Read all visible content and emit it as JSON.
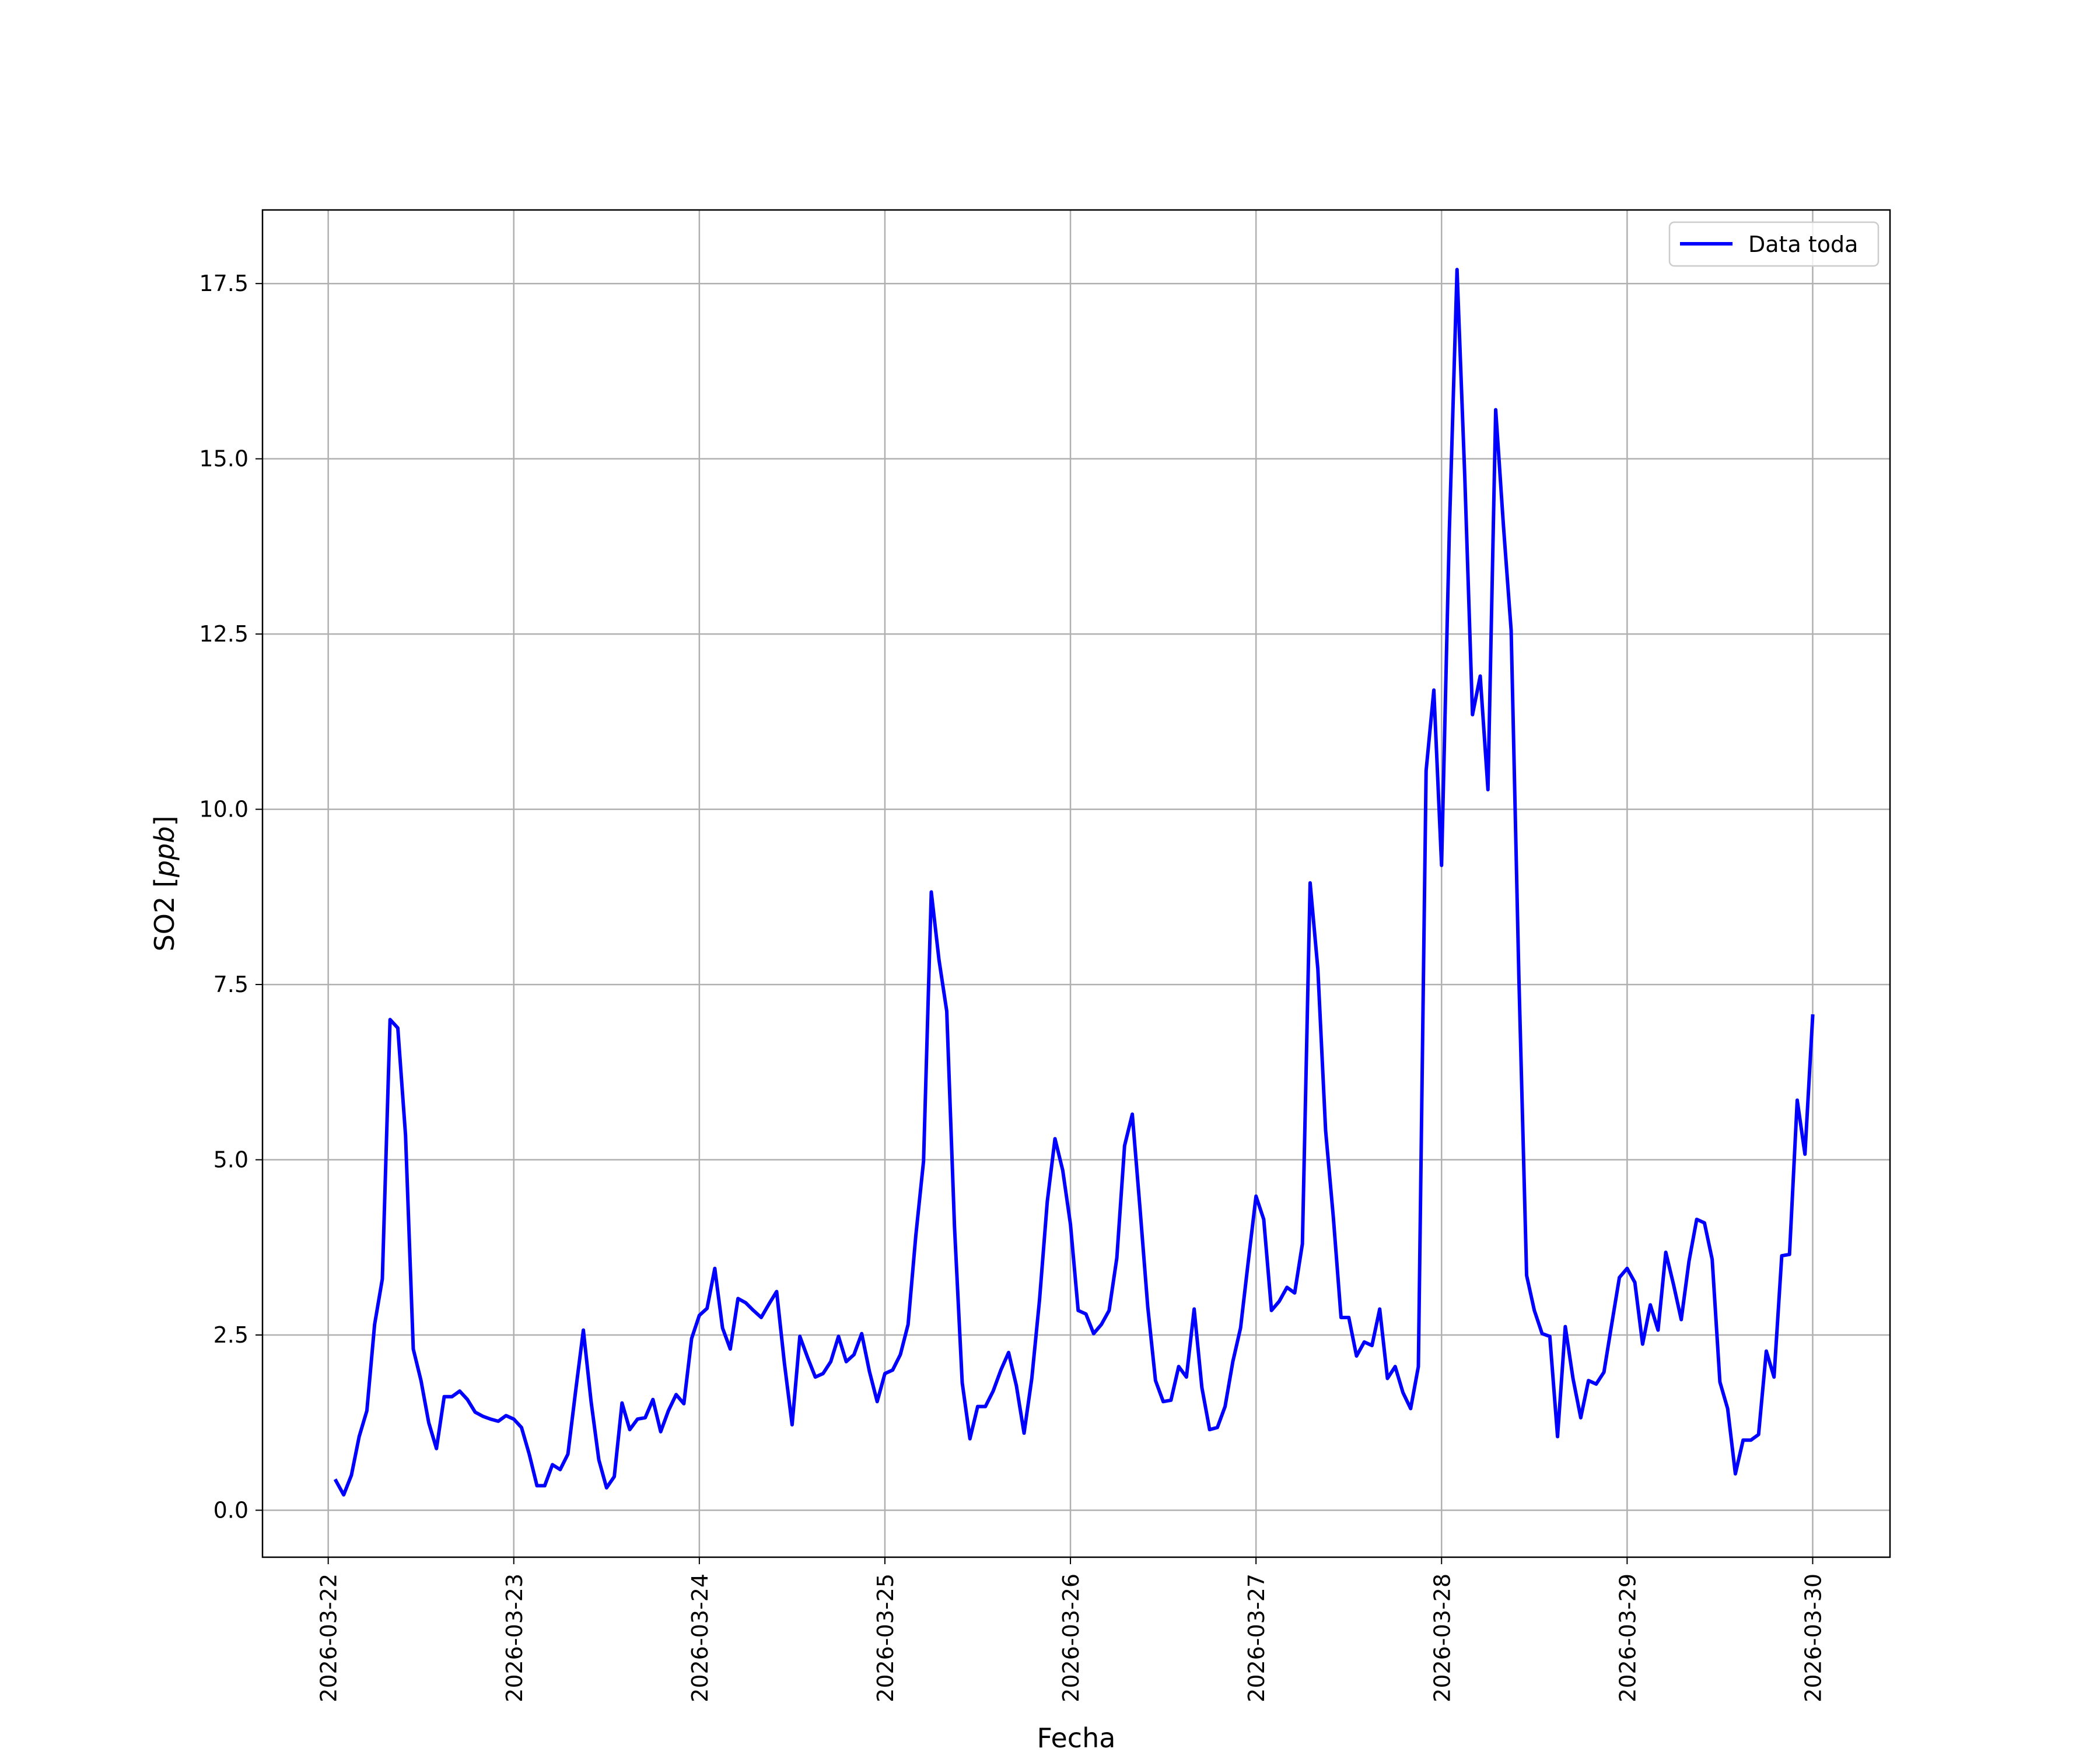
{
  "chart_data": {
    "type": "line",
    "title": "",
    "xlabel": "Fecha",
    "ylabel": "SO2 [ppb]",
    "ylabel_parts": {
      "prefix": "SO2 [",
      "unit": "ppb",
      "suffix": "]"
    },
    "xlim": [
      "2026-03-21 15:30",
      "2026-03-30 10:00"
    ],
    "ylim": [
      -0.67,
      18.55
    ],
    "x_ticks": [
      "2026-03-22",
      "2026-03-23",
      "2026-03-24",
      "2026-03-25",
      "2026-03-26",
      "2026-03-27",
      "2026-03-28",
      "2026-03-29",
      "2026-03-30"
    ],
    "y_ticks": [
      0.0,
      2.5,
      5.0,
      7.5,
      10.0,
      12.5,
      15.0,
      17.5
    ],
    "y_tick_labels": [
      "0.0",
      "2.5",
      "5.0",
      "7.5",
      "10.0",
      "12.5",
      "15.0",
      "17.5"
    ],
    "grid": true,
    "legend": {
      "position": "upper right",
      "entries": [
        "Data toda"
      ]
    },
    "series": [
      {
        "name": "Data toda",
        "color": "#0000ff",
        "start": "2026-03-22 01:00",
        "interval_hours": 1,
        "values": [
          0.42,
          0.22,
          0.5,
          1.05,
          1.42,
          2.65,
          3.3,
          7.0,
          6.88,
          5.35,
          2.3,
          1.85,
          1.25,
          0.88,
          1.62,
          1.62,
          1.7,
          1.58,
          1.4,
          1.34,
          1.3,
          1.27,
          1.35,
          1.3,
          1.18,
          0.8,
          0.35,
          0.35,
          0.65,
          0.58,
          0.8,
          1.7,
          2.57,
          1.55,
          0.72,
          0.32,
          0.48,
          1.53,
          1.15,
          1.3,
          1.32,
          1.58,
          1.12,
          1.42,
          1.65,
          1.52,
          2.45,
          2.78,
          2.88,
          3.45,
          2.6,
          2.3,
          3.02,
          2.96,
          2.85,
          2.75,
          2.94,
          3.12,
          2.1,
          1.22,
          2.48,
          2.18,
          1.9,
          1.95,
          2.12,
          2.48,
          2.12,
          2.22,
          2.52,
          1.98,
          1.55,
          1.95,
          2.0,
          2.22,
          2.65,
          3.92,
          4.98,
          8.82,
          7.85,
          7.12,
          4.05,
          1.82,
          1.02,
          1.48,
          1.48,
          1.7,
          2.0,
          2.25,
          1.78,
          1.1,
          1.88,
          3.0,
          4.4,
          5.3,
          4.85,
          4.08,
          2.85,
          2.8,
          2.52,
          2.65,
          2.85,
          3.6,
          5.2,
          5.65,
          4.3,
          2.9,
          1.85,
          1.55,
          1.57,
          2.05,
          1.9,
          2.87,
          1.75,
          1.15,
          1.18,
          1.48,
          2.12,
          2.6,
          3.55,
          4.48,
          4.15,
          2.85,
          2.98,
          3.18,
          3.1,
          3.8,
          8.95,
          7.72,
          5.42,
          4.18,
          2.75,
          2.75,
          2.2,
          2.4,
          2.35,
          2.87,
          1.88,
          2.05,
          1.68,
          1.45,
          2.05,
          10.55,
          11.7,
          9.2,
          13.95,
          17.7,
          14.75,
          11.35,
          11.9,
          10.28,
          15.7,
          14.05,
          12.55,
          7.6,
          3.35,
          2.85,
          2.52,
          2.48,
          1.05,
          2.62,
          1.88,
          1.32,
          1.85,
          1.8,
          1.97,
          2.65,
          3.32,
          3.45,
          3.25,
          2.37,
          2.93,
          2.57,
          3.68,
          3.22,
          2.72,
          3.55,
          4.15,
          4.1,
          3.58,
          1.83,
          1.45,
          0.52,
          1.0,
          1.0,
          1.08,
          2.27,
          1.9,
          3.63,
          3.65,
          5.85,
          5.08,
          7.05
        ]
      }
    ]
  }
}
